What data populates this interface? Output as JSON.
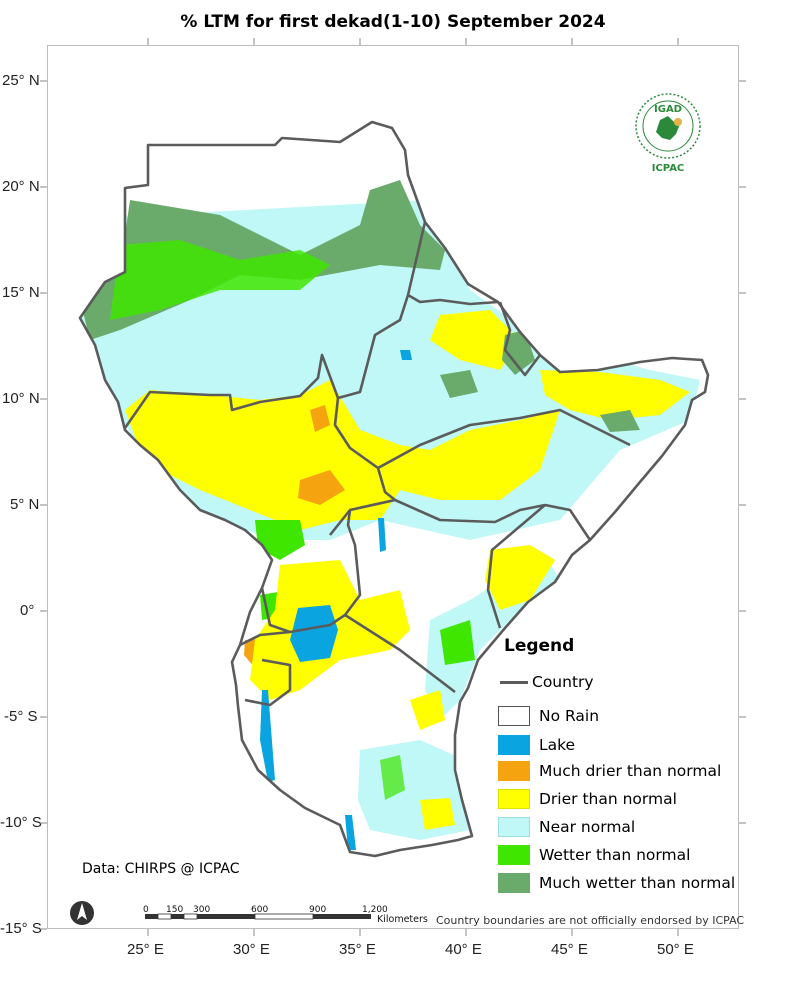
{
  "title": "% LTM for first dekad(1-10) September 2024",
  "axes": {
    "y_ticks": [
      "25° N",
      "20° N",
      "15° N",
      "10° N",
      "5° N",
      "0°",
      "-5° S",
      "-10° S",
      "-15° S"
    ],
    "x_ticks": [
      "25° E",
      "30° E",
      "35° E",
      "40° E",
      "45° E",
      "50° E"
    ]
  },
  "legend": {
    "title": "Legend",
    "items": [
      {
        "label": "Country",
        "type": "line",
        "color": "#5b5b5b"
      },
      {
        "label": "No Rain",
        "type": "fill",
        "color": "#ffffff"
      },
      {
        "label": "Lake",
        "type": "fill",
        "color": "#0aa5e0"
      },
      {
        "label": "Much drier than normal",
        "type": "fill",
        "color": "#f5a30f"
      },
      {
        "label": "Drier than normal",
        "type": "fill",
        "color": "#ffff00"
      },
      {
        "label": "Near normal",
        "type": "fill",
        "color": "#bff8f6"
      },
      {
        "label": "Wetter than normal",
        "type": "fill",
        "color": "#3fe600"
      },
      {
        "label": "Much wetter than normal",
        "type": "fill",
        "color": "#6aaa6a"
      }
    ]
  },
  "credit": "Data: CHIRPS @ ICPAC",
  "disclaimer": "Country boundaries are not officially endorsed by ICPAC",
  "scale_bar": {
    "ticks": [
      "0",
      "150",
      "300",
      "600",
      "900",
      "1,200"
    ],
    "unit": "Kilometers"
  },
  "logo": {
    "top_text": "IGAD",
    "bottom_text": "ICPAC",
    "icon": "igad-emblem-icon"
  },
  "north_arrow_icon": "north-arrow-icon"
}
